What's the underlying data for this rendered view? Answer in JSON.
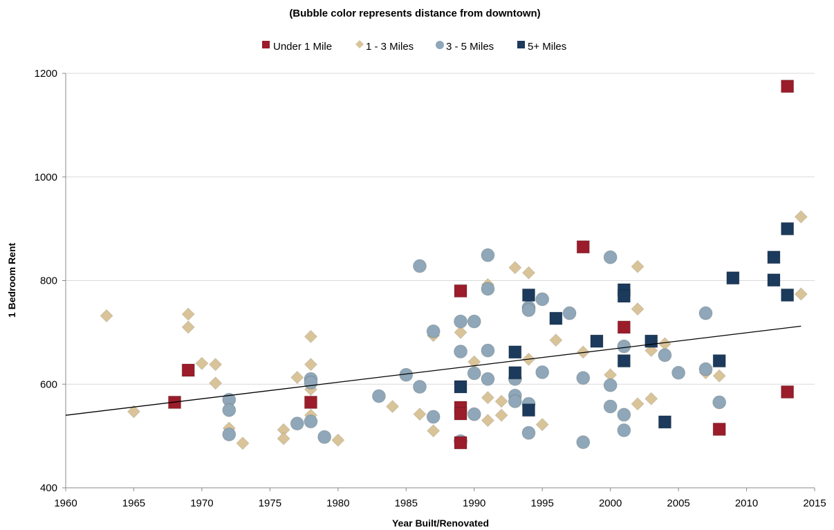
{
  "chart_data": {
    "type": "scatter",
    "subtitle": "(Bubble color represents distance from downtown)",
    "xlabel": "Year Built/Renovated",
    "ylabel": "1 Bedroom Rent",
    "xlim": [
      1960,
      2015
    ],
    "ylim": [
      400,
      1200
    ],
    "xticks": [
      1960,
      1965,
      1970,
      1975,
      1980,
      1985,
      1990,
      1995,
      2000,
      2005,
      2010,
      2015
    ],
    "yticks": [
      400,
      600,
      800,
      1000,
      1200
    ],
    "grid": "horizontal",
    "legend_position": "top-center",
    "trendline": {
      "type": "linear",
      "x": [
        1960,
        2014
      ],
      "y": [
        540,
        712
      ],
      "color": "#000000"
    },
    "series": [
      {
        "name": "Under 1 Mile",
        "marker": "square",
        "color": "#9B1C2A",
        "points": [
          [
            1968,
            565
          ],
          [
            1969,
            627
          ],
          [
            1978,
            565
          ],
          [
            1989,
            780
          ],
          [
            1989,
            555
          ],
          [
            1989,
            543
          ],
          [
            1989,
            487
          ],
          [
            1998,
            865
          ],
          [
            2001,
            710
          ],
          [
            2008,
            513
          ],
          [
            2013,
            1175
          ],
          [
            2013,
            585
          ]
        ]
      },
      {
        "name": "1 - 3 Miles",
        "marker": "diamond",
        "color": "#D9C49A",
        "points": [
          [
            1963,
            732
          ],
          [
            1965,
            547
          ],
          [
            1969,
            735
          ],
          [
            1969,
            710
          ],
          [
            1970,
            640
          ],
          [
            1971,
            638
          ],
          [
            1971,
            602
          ],
          [
            1972,
            515
          ],
          [
            1973,
            486
          ],
          [
            1976,
            512
          ],
          [
            1976,
            495
          ],
          [
            1977,
            613
          ],
          [
            1977,
            524
          ],
          [
            1978,
            692
          ],
          [
            1978,
            638
          ],
          [
            1978,
            590
          ],
          [
            1978,
            540
          ],
          [
            1980,
            492
          ],
          [
            1984,
            557
          ],
          [
            1986,
            542
          ],
          [
            1987,
            694
          ],
          [
            1987,
            510
          ],
          [
            1989,
            700
          ],
          [
            1990,
            643
          ],
          [
            1991,
            792
          ],
          [
            1991,
            574
          ],
          [
            1991,
            530
          ],
          [
            1992,
            540
          ],
          [
            1992,
            567
          ],
          [
            1993,
            825
          ],
          [
            1994,
            815
          ],
          [
            1994,
            648
          ],
          [
            1995,
            522
          ],
          [
            1996,
            685
          ],
          [
            1998,
            662
          ],
          [
            2000,
            618
          ],
          [
            2002,
            827
          ],
          [
            2002,
            745
          ],
          [
            2002,
            562
          ],
          [
            2003,
            665
          ],
          [
            2003,
            572
          ],
          [
            2004,
            678
          ],
          [
            2007,
            622
          ],
          [
            2008,
            616
          ],
          [
            2014,
            923
          ],
          [
            2014,
            774
          ]
        ]
      },
      {
        "name": "3 - 5 Miles",
        "marker": "circle",
        "color": "#8FA7B8",
        "points": [
          [
            1972,
            570
          ],
          [
            1972,
            550
          ],
          [
            1972,
            503
          ],
          [
            1977,
            524
          ],
          [
            1978,
            610
          ],
          [
            1978,
            603
          ],
          [
            1978,
            528
          ],
          [
            1979,
            498
          ],
          [
            1983,
            577
          ],
          [
            1985,
            618
          ],
          [
            1986,
            828
          ],
          [
            1986,
            595
          ],
          [
            1987,
            702
          ],
          [
            1987,
            537
          ],
          [
            1989,
            721
          ],
          [
            1989,
            663
          ],
          [
            1989,
            490
          ],
          [
            1990,
            721
          ],
          [
            1990,
            621
          ],
          [
            1990,
            542
          ],
          [
            1991,
            849
          ],
          [
            1991,
            784
          ],
          [
            1991,
            665
          ],
          [
            1991,
            610
          ],
          [
            1993,
            610
          ],
          [
            1993,
            578
          ],
          [
            1993,
            567
          ],
          [
            1994,
            748
          ],
          [
            1994,
            743
          ],
          [
            1994,
            562
          ],
          [
            1994,
            506
          ],
          [
            1995,
            764
          ],
          [
            1995,
            623
          ],
          [
            1997,
            737
          ],
          [
            1998,
            612
          ],
          [
            1998,
            488
          ],
          [
            2000,
            845
          ],
          [
            2000,
            598
          ],
          [
            2000,
            557
          ],
          [
            2001,
            673
          ],
          [
            2001,
            541
          ],
          [
            2001,
            511
          ],
          [
            2004,
            656
          ],
          [
            2005,
            622
          ],
          [
            2007,
            737
          ],
          [
            2007,
            629
          ],
          [
            2008,
            565
          ]
        ]
      },
      {
        "name": "5+ Miles",
        "marker": "square",
        "color": "#1B3A5C",
        "points": [
          [
            1989,
            595
          ],
          [
            1993,
            662
          ],
          [
            1993,
            622
          ],
          [
            1994,
            772
          ],
          [
            1994,
            550
          ],
          [
            1996,
            727
          ],
          [
            1999,
            683
          ],
          [
            2001,
            782
          ],
          [
            2001,
            770
          ],
          [
            2001,
            645
          ],
          [
            2003,
            683
          ],
          [
            2004,
            527
          ],
          [
            2008,
            645
          ],
          [
            2009,
            805
          ],
          [
            2012,
            845
          ],
          [
            2012,
            801
          ],
          [
            2013,
            900
          ],
          [
            2013,
            772
          ]
        ]
      }
    ]
  }
}
